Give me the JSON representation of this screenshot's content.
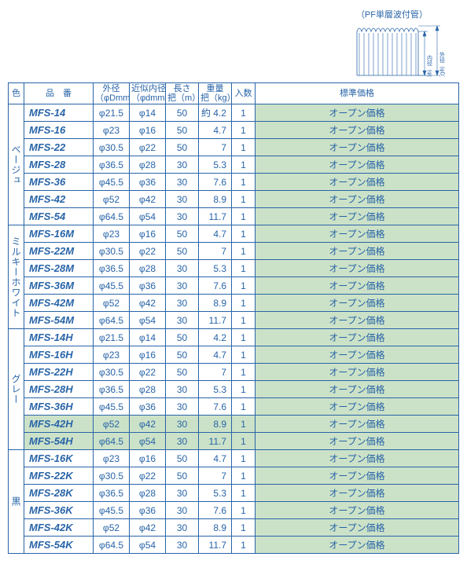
{
  "diagram_caption": "（PF単層波付管）",
  "diagram_labels": {
    "inner": "内径（φd）",
    "outer": "外径（φD）"
  },
  "headers": {
    "color": "色",
    "part": "品　番",
    "od": "外径\n（φDmm）",
    "id": "近似内径\n（φdmm）",
    "len": "長さ\n把（m）",
    "wt": "重量\n把（kg）",
    "qty": "入数",
    "price": "標準価格"
  },
  "price_text": "オープン価格",
  "groups": [
    {
      "label": "ベージュ",
      "rows": [
        {
          "part": "MFS-14",
          "od": "φ21.5",
          "id": "φ14",
          "len": "50",
          "wt": "約 4.2",
          "qty": "1"
        },
        {
          "part": "MFS-16",
          "od": "φ23",
          "id": "φ16",
          "len": "50",
          "wt": "4.7",
          "qty": "1"
        },
        {
          "part": "MFS-22",
          "od": "φ30.5",
          "id": "φ22",
          "len": "50",
          "wt": "7",
          "qty": "1"
        },
        {
          "part": "MFS-28",
          "od": "φ36.5",
          "id": "φ28",
          "len": "30",
          "wt": "5.3",
          "qty": "1"
        },
        {
          "part": "MFS-36",
          "od": "φ45.5",
          "id": "φ36",
          "len": "30",
          "wt": "7.6",
          "qty": "1"
        },
        {
          "part": "MFS-42",
          "od": "φ52",
          "id": "φ42",
          "len": "30",
          "wt": "8.9",
          "qty": "1"
        },
        {
          "part": "MFS-54",
          "od": "φ64.5",
          "id": "φ54",
          "len": "30",
          "wt": "11.7",
          "qty": "1"
        }
      ]
    },
    {
      "label": "ミルキーホワイト",
      "rows": [
        {
          "part": "MFS-16M",
          "od": "φ23",
          "id": "φ16",
          "len": "50",
          "wt": "4.7",
          "qty": "1"
        },
        {
          "part": "MFS-22M",
          "od": "φ30.5",
          "id": "φ22",
          "len": "50",
          "wt": "7",
          "qty": "1"
        },
        {
          "part": "MFS-28M",
          "od": "φ36.5",
          "id": "φ28",
          "len": "30",
          "wt": "5.3",
          "qty": "1"
        },
        {
          "part": "MFS-36M",
          "od": "φ45.5",
          "id": "φ36",
          "len": "30",
          "wt": "7.6",
          "qty": "1"
        },
        {
          "part": "MFS-42M",
          "od": "φ52",
          "id": "φ42",
          "len": "30",
          "wt": "8.9",
          "qty": "1"
        },
        {
          "part": "MFS-54M",
          "od": "φ64.5",
          "id": "φ54",
          "len": "30",
          "wt": "11.7",
          "qty": "1"
        }
      ]
    },
    {
      "label": "グレー",
      "rows": [
        {
          "part": "MFS-14H",
          "od": "φ21.5",
          "id": "φ14",
          "len": "50",
          "wt": "4.2",
          "qty": "1"
        },
        {
          "part": "MFS-16H",
          "od": "φ23",
          "id": "φ16",
          "len": "50",
          "wt": "4.7",
          "qty": "1"
        },
        {
          "part": "MFS-22H",
          "od": "φ30.5",
          "id": "φ22",
          "len": "50",
          "wt": "7",
          "qty": "1"
        },
        {
          "part": "MFS-28H",
          "od": "φ36.5",
          "id": "φ28",
          "len": "30",
          "wt": "5.3",
          "qty": "1"
        },
        {
          "part": "MFS-36H",
          "od": "φ45.5",
          "id": "φ36",
          "len": "30",
          "wt": "7.6",
          "qty": "1"
        },
        {
          "part": "MFS-42H",
          "od": "φ52",
          "id": "φ42",
          "len": "30",
          "wt": "8.9",
          "qty": "1",
          "hl": true
        },
        {
          "part": "MFS-54H",
          "od": "φ64.5",
          "id": "φ54",
          "len": "30",
          "wt": "11.7",
          "qty": "1",
          "hl": true
        }
      ]
    },
    {
      "label": "黒",
      "rows": [
        {
          "part": "MFS-16K",
          "od": "φ23",
          "id": "φ16",
          "len": "50",
          "wt": "4.7",
          "qty": "1"
        },
        {
          "part": "MFS-22K",
          "od": "φ30.5",
          "id": "φ22",
          "len": "50",
          "wt": "7",
          "qty": "1"
        },
        {
          "part": "MFS-28K",
          "od": "φ36.5",
          "id": "φ28",
          "len": "30",
          "wt": "5.3",
          "qty": "1"
        },
        {
          "part": "MFS-36K",
          "od": "φ45.5",
          "id": "φ36",
          "len": "30",
          "wt": "7.6",
          "qty": "1"
        },
        {
          "part": "MFS-42K",
          "od": "φ52",
          "id": "φ42",
          "len": "30",
          "wt": "8.9",
          "qty": "1"
        },
        {
          "part": "MFS-54K",
          "od": "φ64.5",
          "id": "φ54",
          "len": "30",
          "wt": "11.7",
          "qty": "1"
        }
      ]
    }
  ],
  "colors": {
    "border": "#2864a8",
    "text": "#2864a8",
    "highlight_bg": "#cce2c8",
    "page_bg": "#ffffff"
  }
}
